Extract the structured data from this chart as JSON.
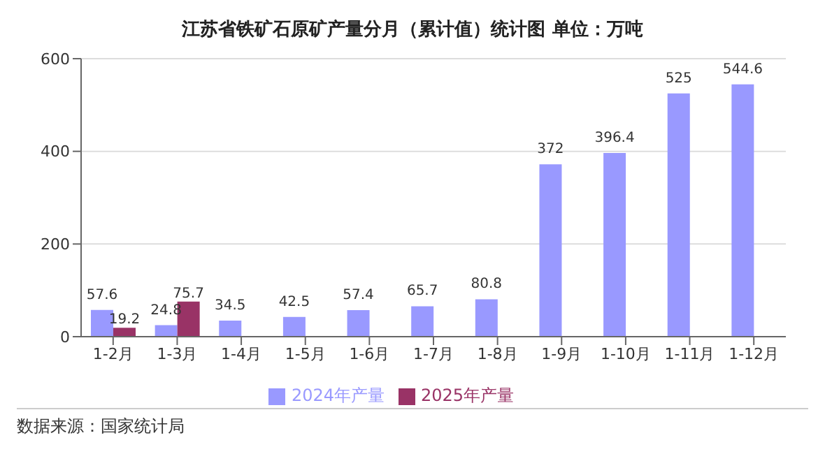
{
  "chart_data": {
    "type": "bar",
    "title": "江苏省铁矿石原矿产量分月（累计值）统计图 单位：万吨",
    "categories": [
      "1-2月",
      "1-3月",
      "1-4月",
      "1-5月",
      "1-6月",
      "1-7月",
      "1-8月",
      "1-9月",
      "1-10月",
      "1-11月",
      "1-12月"
    ],
    "series": [
      {
        "name": "2024年产量",
        "color": "#9999ff",
        "values": [
          57.6,
          24.8,
          34.5,
          42.5,
          57.4,
          65.7,
          80.8,
          372,
          396.4,
          525,
          544.6
        ]
      },
      {
        "name": "2025年产量",
        "color": "#993366",
        "values": [
          19.2,
          75.7,
          null,
          null,
          null,
          null,
          null,
          null,
          null,
          null,
          null
        ]
      }
    ],
    "ylim": [
      0,
      600
    ],
    "yticks": [
      0,
      200,
      400,
      600
    ],
    "grid": "y",
    "legend": "bottom",
    "data_labels": true,
    "annotations": [
      "数据来源：国家统计局"
    ]
  }
}
